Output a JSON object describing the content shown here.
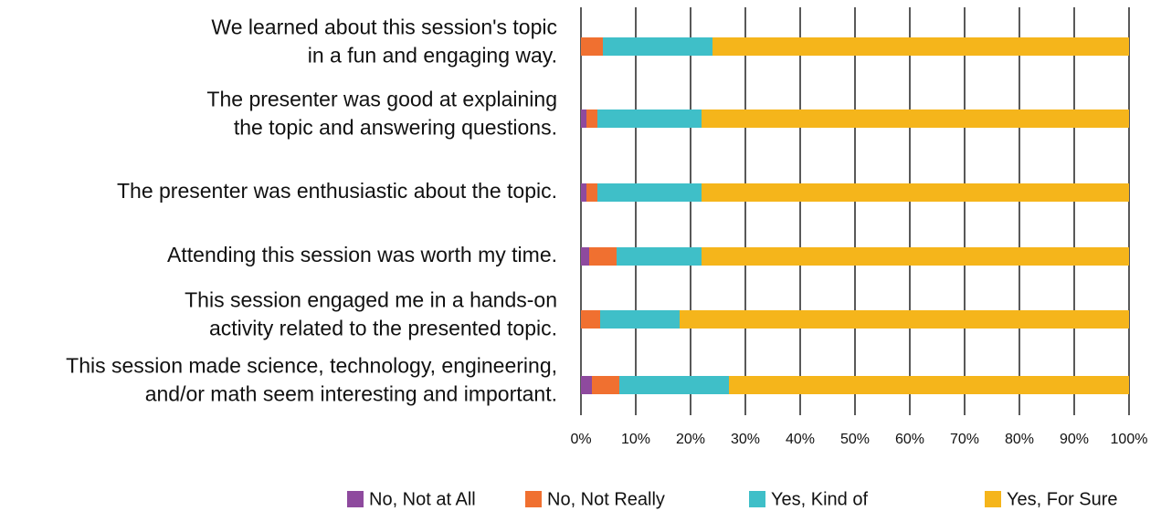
{
  "chart_data": {
    "type": "stacked_barh",
    "categories": [
      [
        "We learned about this session's topic",
        "in a fun and engaging way."
      ],
      [
        "The presenter was good at explaining",
        "the topic and answering questions."
      ],
      [
        "The presenter was enthusiastic about the topic."
      ],
      [
        "Attending this session was worth my time."
      ],
      [
        "This session engaged me in a hands-on",
        "activity related to the presented topic."
      ],
      [
        "This session made science, technology, engineering,",
        "and/or math seem interesting and important."
      ]
    ],
    "series": [
      {
        "name": "No, Not at All",
        "color": "#8e4a9e",
        "values": [
          0,
          1,
          1,
          1.5,
          0,
          2
        ]
      },
      {
        "name": "No, Not Really",
        "color": "#f07030",
        "values": [
          4,
          2,
          2,
          5,
          3.5,
          5
        ]
      },
      {
        "name": "Yes, Kind of",
        "color": "#3fbfc8",
        "values": [
          20,
          19,
          19,
          15.5,
          14.5,
          20
        ]
      },
      {
        "name": "Yes, For Sure",
        "color": "#f5b51b",
        "values": [
          76,
          78,
          78,
          78,
          82,
          73
        ]
      }
    ],
    "xlim": [
      0,
      100
    ],
    "xticks": [
      {
        "value": 0,
        "label": "0%"
      },
      {
        "value": 10,
        "label": "10%"
      },
      {
        "value": 20,
        "label": "20%"
      },
      {
        "value": 30,
        "label": "30%"
      },
      {
        "value": 40,
        "label": "40%"
      },
      {
        "value": 50,
        "label": "50%"
      },
      {
        "value": 60,
        "label": "60%"
      },
      {
        "value": 70,
        "label": "70%"
      },
      {
        "value": 80,
        "label": "80%"
      },
      {
        "value": 90,
        "label": "90%"
      },
      {
        "value": 100,
        "label": "100%"
      }
    ],
    "grid": true,
    "legend": "bottom"
  }
}
